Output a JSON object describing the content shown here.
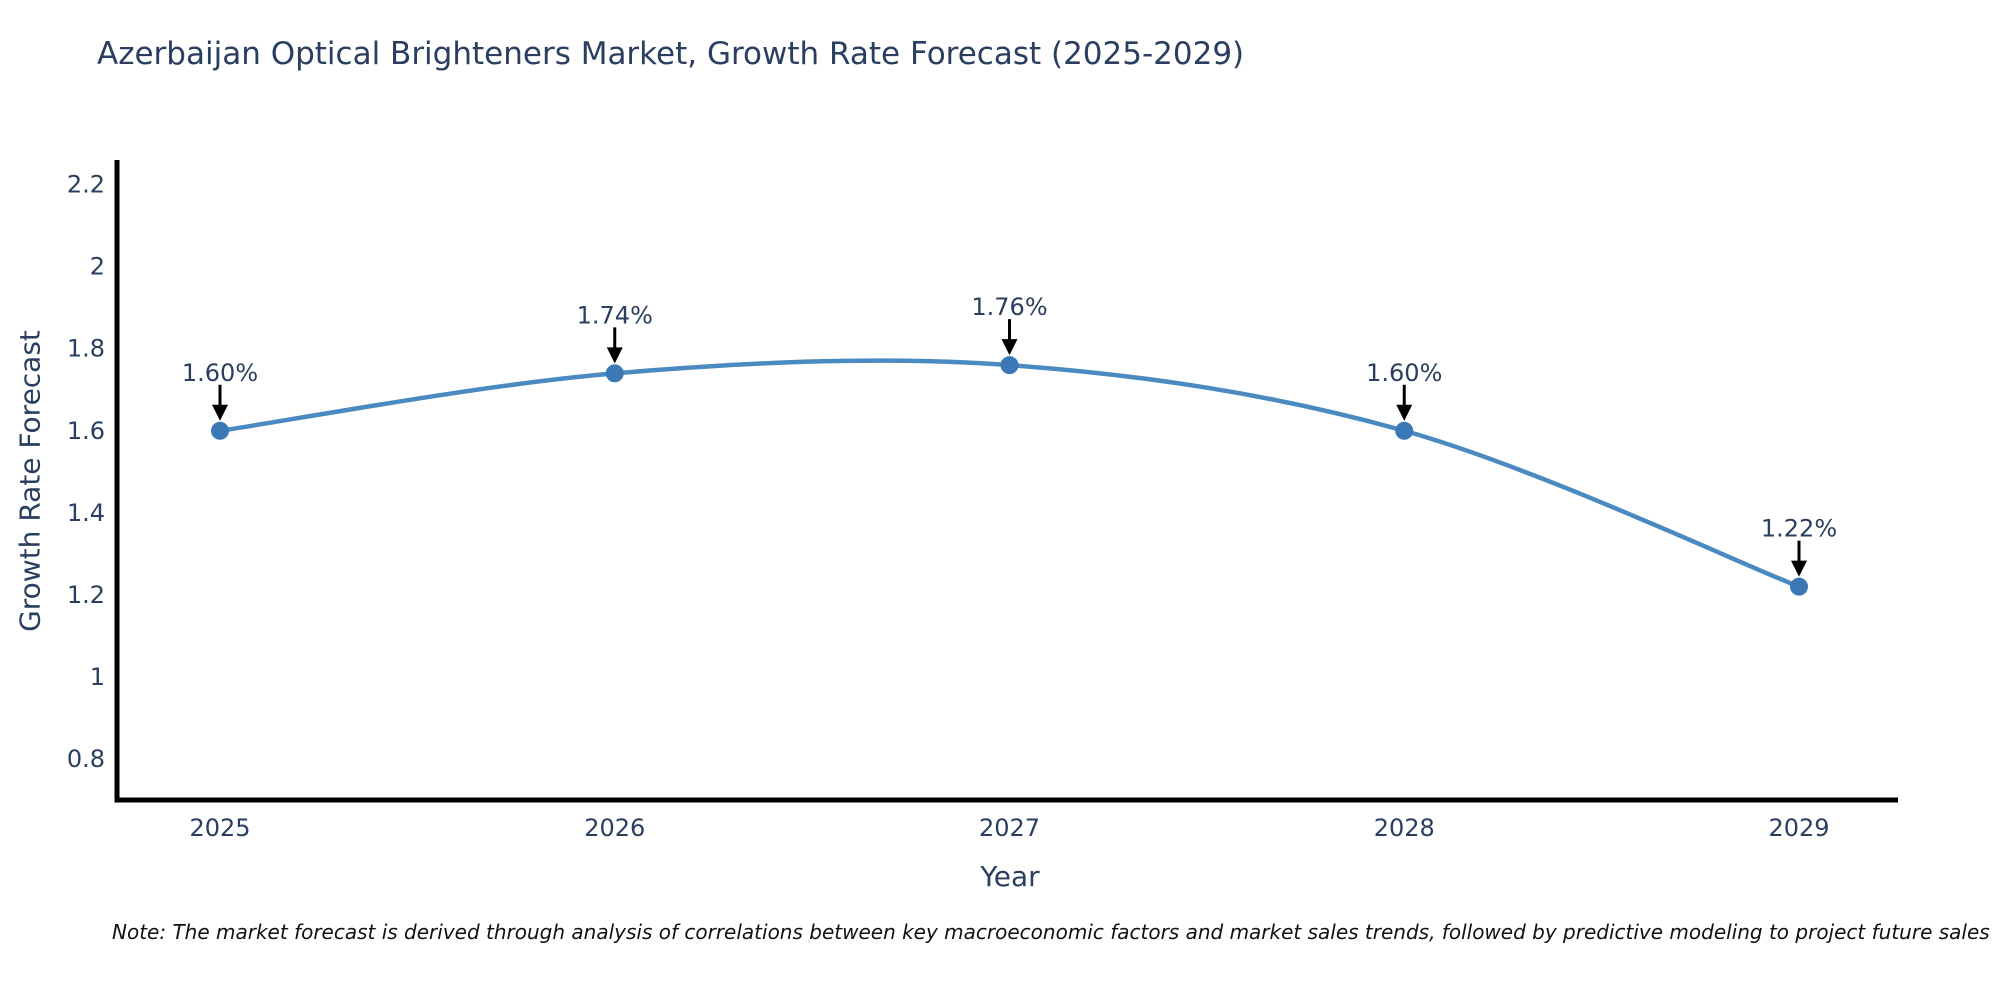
{
  "title": "Azerbaijan Optical Brighteners Market, Growth Rate Forecast (2025-2029)",
  "note": "Note: The market forecast is derived through analysis of correlations between key macroeconomic factors and market sales trends, followed by predictive modeling to project future sales",
  "chart_data": {
    "type": "line",
    "title": "Azerbaijan Optical Brighteners Market, Growth Rate Forecast (2025-2029)",
    "xlabel": "Year",
    "ylabel": "Growth Rate Forecast",
    "categories": [
      "2025",
      "2026",
      "2027",
      "2028",
      "2029"
    ],
    "series": [
      {
        "name": "Growth Rate Forecast",
        "values": [
          1.6,
          1.74,
          1.76,
          1.6,
          1.22
        ]
      }
    ],
    "point_labels": [
      "1.60%",
      "1.74%",
      "1.76%",
      "1.60%",
      "1.22%"
    ],
    "ytick_values": [
      0.8,
      1.0,
      1.2,
      1.4,
      1.6,
      1.8,
      2.0,
      2.2
    ],
    "ytick_labels": [
      "0.8",
      "1",
      "1.2",
      "1.4",
      "1.6",
      "1.8",
      "2",
      "2.2"
    ],
    "ylim": [
      0.7,
      2.26
    ],
    "line_shape": "spline",
    "grid": false,
    "legend_position": "none",
    "colors": {
      "line": "#4a8ac0",
      "marker": "#3a79b5",
      "axis": "#000000",
      "text": "#2a3f5f",
      "annotation_arrow": "#000000",
      "note_text": "#111111"
    }
  }
}
